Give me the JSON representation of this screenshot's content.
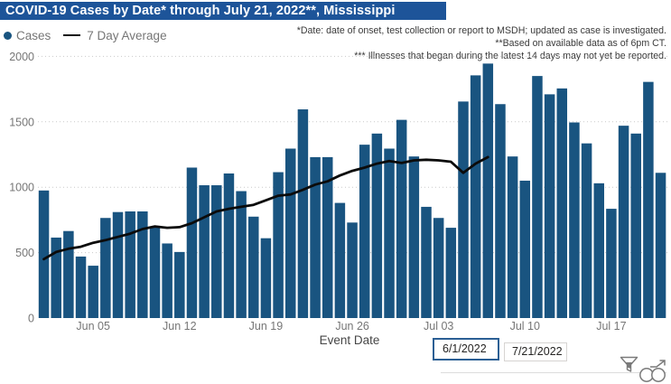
{
  "header": {
    "title": "COVID-19 Cases by Date* through July 21, 2022**, Mississippi"
  },
  "legend": {
    "cases_label": "Cases",
    "avg_label": "7 Day Average"
  },
  "notes": [
    "*Date: date of onset, test collection or report to MSDH; updated as case is investigated.",
    "**Based on available data as of 6pm CT.",
    "*** Illnesses that began during the latest 14 days may not yet be reported."
  ],
  "date_range": {
    "start": "6/1/2022",
    "end": "7/21/2022"
  },
  "icons": {
    "filter": "funnel-filter-icon",
    "explore": "circles-arrow-icon"
  },
  "colors": {
    "title_bg": "#1D5499",
    "bar": "#195480",
    "avg_line": "#0B0B0B",
    "grid": "#C9C9C9",
    "axis_text": "#767676",
    "note_text": "#3A3A3A",
    "focus_border": "#2B5F94"
  },
  "chart_data": {
    "type": "bar",
    "title": "COVID-19 Cases by Date* through July 21, 2022**, Mississippi",
    "xlabel": "Event Date",
    "ylabel": "",
    "ylim": [
      0,
      2000
    ],
    "y_ticks": [
      0,
      500,
      1000,
      1500,
      2000
    ],
    "grid": "dotted-horizontal",
    "legend_position": "top-left",
    "start_date": "6/1/2022",
    "end_date": "7/21/2022",
    "x_tick_labels": [
      {
        "index": 4,
        "label": "Jun 05"
      },
      {
        "index": 11,
        "label": "Jun 12"
      },
      {
        "index": 18,
        "label": "Jun 19"
      },
      {
        "index": 25,
        "label": "Jun 26"
      },
      {
        "index": 32,
        "label": "Jul 03"
      },
      {
        "index": 39,
        "label": "Jul 10"
      },
      {
        "index": 46,
        "label": "Jul 17"
      }
    ],
    "series": [
      {
        "name": "Cases",
        "type": "bar",
        "values": [
          975,
          615,
          665,
          470,
          400,
          765,
          810,
          815,
          815,
          695,
          570,
          505,
          1150,
          1015,
          1015,
          1105,
          970,
          775,
          610,
          1115,
          1295,
          1595,
          1230,
          1230,
          880,
          730,
          1325,
          1410,
          1295,
          1515,
          1235,
          850,
          765,
          690,
          1655,
          1855,
          1945,
          1635,
          1235,
          1050,
          1850,
          1710,
          1755,
          1495,
          1335,
          1030,
          835,
          1470,
          1410,
          1805,
          1110
        ]
      },
      {
        "name": "7 Day Average",
        "type": "line",
        "note": "line drawn only through Jul 7 (latest 14 days omitted)",
        "values": [
          450,
          505,
          530,
          545,
          575,
          595,
          620,
          645,
          680,
          700,
          690,
          695,
          725,
          770,
          815,
          835,
          850,
          865,
          900,
          935,
          945,
          980,
          1020,
          1045,
          1090,
          1125,
          1150,
          1180,
          1200,
          1185,
          1205,
          1210,
          1205,
          1195,
          1110,
          1180,
          1230
        ]
      }
    ]
  }
}
